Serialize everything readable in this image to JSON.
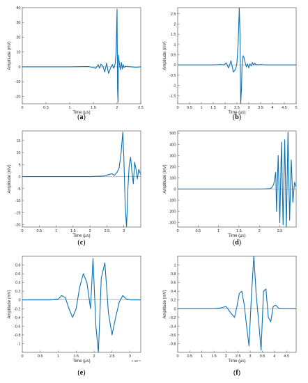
{
  "figure": {
    "line_color": "#0b6fb3",
    "axis_color": "#444444",
    "zero_line_color": "#9a9a9a"
  },
  "chart_data": [
    {
      "type": "line",
      "caption": "a",
      "xlabel": "Time (μs)",
      "ylabel": "Amplitude (mV)",
      "xlim": [
        0,
        2.5
      ],
      "ylim": [
        -25,
        40
      ],
      "xticks": [
        0,
        0.5,
        1,
        1.5,
        2,
        2.5
      ],
      "yticks": [
        -20,
        -10,
        0,
        10,
        20,
        30,
        40
      ],
      "x_exponent": "",
      "series": [
        {
          "x": [
            0,
            0.5,
            1.0,
            1.4,
            1.55,
            1.6,
            1.63,
            1.66,
            1.7,
            1.74,
            1.78,
            1.82,
            1.86,
            1.9,
            1.93,
            1.96,
            1.98,
            1.99,
            2.0,
            2.01,
            2.02,
            2.03,
            2.05,
            2.07,
            2.09,
            2.11,
            2.13,
            2.15,
            2.18,
            2.2,
            2.3,
            2.4,
            2.5
          ],
          "y": [
            0,
            0,
            0,
            0.2,
            -1,
            1.5,
            -1,
            1.8,
            0.5,
            -3.5,
            2.5,
            -4.5,
            -1,
            1.5,
            -1,
            2.0,
            10,
            25,
            39,
            -15,
            -24,
            8,
            2,
            -2,
            3,
            -1.5,
            1.5,
            -0.5,
            0.5,
            0.2,
            0,
            -0.3,
            0
          ]
        }
      ]
    },
    {
      "type": "line",
      "caption": "b",
      "xlabel": "Time (μs)",
      "ylabel": "Amplitude (mV)",
      "xlim": [
        0,
        5
      ],
      "ylim": [
        -1.9,
        2.8
      ],
      "xticks": [
        0,
        0.5,
        1,
        1.5,
        2,
        2.5,
        3,
        3.5,
        4,
        4.5,
        5
      ],
      "yticks": [
        -1.5,
        -1,
        -0.5,
        0,
        0.5,
        1,
        1.5,
        2,
        2.5
      ],
      "x_exponent": "",
      "series": [
        {
          "x": [
            0,
            1.0,
            1.5,
            1.8,
            1.95,
            2.05,
            2.15,
            2.25,
            2.35,
            2.45,
            2.5,
            2.55,
            2.6,
            2.63,
            2.66,
            2.69,
            2.72,
            2.76,
            2.8,
            2.85,
            2.9,
            2.95,
            3.0,
            3.05,
            3.1,
            3.15,
            3.2,
            3.25,
            3.3,
            3.35,
            3.4,
            3.5,
            3.7,
            4.0,
            5.0
          ],
          "y": [
            0,
            0,
            0,
            0.02,
            0.0,
            0.1,
            -0.15,
            0.2,
            -0.35,
            -0.2,
            0.1,
            1.0,
            2.8,
            1.5,
            -1.9,
            -1.2,
            0.1,
            0.45,
            0.35,
            0.1,
            -0.1,
            0.05,
            -0.15,
            0.05,
            -0.05,
            0.12,
            0.0,
            0.08,
            0.0,
            0.02,
            0,
            0.02,
            0,
            0,
            0
          ]
        }
      ]
    },
    {
      "type": "line",
      "caption": "c",
      "xlabel": "Time (μs)",
      "ylabel": "Amplitude (mV)",
      "xlim": [
        0,
        3.5
      ],
      "ylim": [
        -21,
        19
      ],
      "xticks": [
        0,
        0.5,
        1,
        1.5,
        2,
        2.5,
        3
      ],
      "yticks": [
        -20,
        -15,
        -10,
        -5,
        0,
        5,
        10,
        15
      ],
      "x_exponent": "",
      "series": [
        {
          "x": [
            0,
            1.0,
            2.0,
            2.4,
            2.55,
            2.65,
            2.72,
            2.8,
            2.86,
            2.92,
            2.97,
            3.0,
            3.04,
            3.08,
            3.12,
            3.16,
            3.2,
            3.24,
            3.28,
            3.32,
            3.36,
            3.4,
            3.44,
            3.48,
            3.5
          ],
          "y": [
            0,
            0,
            0,
            0.2,
            0.8,
            1.2,
            0.5,
            1.8,
            3.5,
            10,
            18.5,
            8,
            -12,
            -21,
            -5,
            5,
            8,
            2,
            -3,
            6,
            3,
            -1,
            3,
            1.5,
            1
          ]
        }
      ]
    },
    {
      "type": "line",
      "caption": "d",
      "xlabel": "Time (μs)",
      "ylabel": "Amplitude (mV)",
      "xlim": [
        0,
        2.9
      ],
      "ylim": [
        -340,
        520
      ],
      "xticks": [
        0,
        0.5,
        1,
        1.5,
        2,
        2.5
      ],
      "yticks": [
        -300,
        -200,
        -100,
        0,
        100,
        200,
        300,
        400,
        500
      ],
      "x_exponent": "",
      "series": [
        {
          "x": [
            0,
            1.0,
            2.0,
            2.25,
            2.3,
            2.35,
            2.4,
            2.42,
            2.46,
            2.5,
            2.54,
            2.58,
            2.62,
            2.66,
            2.7,
            2.74,
            2.78,
            2.82,
            2.86,
            2.9
          ],
          "y": [
            0,
            0,
            0,
            3,
            10,
            40,
            150,
            -200,
            300,
            -300,
            420,
            -320,
            440,
            -340,
            510,
            -280,
            260,
            -120,
            60,
            20
          ]
        }
      ]
    },
    {
      "type": "line",
      "caption": "e",
      "xlabel": "Time (μs)",
      "ylabel": "Amplitude (mV)",
      "xlim": [
        0,
        3.3
      ],
      "ylim": [
        -1.2,
        1.0
      ],
      "xticks": [
        0,
        0.5,
        1,
        1.5,
        2,
        2.5,
        3
      ],
      "yticks": [
        -1,
        -0.8,
        -0.6,
        -0.4,
        -0.2,
        0,
        0.2,
        0.4,
        0.6,
        0.8
      ],
      "x_exponent": "× 10⁻⁶",
      "series": [
        {
          "x": [
            0,
            0.5,
            0.8,
            1.0,
            1.1,
            1.2,
            1.3,
            1.4,
            1.5,
            1.6,
            1.7,
            1.8,
            1.9,
            1.97,
            2.05,
            2.12,
            2.2,
            2.3,
            2.4,
            2.5,
            2.6,
            2.7,
            2.8,
            2.9,
            3.0,
            3.3
          ],
          "y": [
            0,
            0,
            0,
            0.02,
            0.1,
            0.05,
            -0.2,
            -0.4,
            -0.2,
            0.3,
            0.6,
            0.4,
            -0.2,
            0.95,
            -0.6,
            -1.2,
            0.5,
            0.85,
            -0.3,
            -0.8,
            -0.4,
            -0.05,
            0.1,
            0.02,
            0,
            0
          ]
        }
      ]
    },
    {
      "type": "line",
      "caption": "f",
      "xlabel": "Time (μs)",
      "ylabel": "Amplitude (mV)",
      "xlim": [
        0,
        4.9
      ],
      "ylim": [
        -1.0,
        1.2
      ],
      "xticks": [
        0,
        0.5,
        1,
        1.5,
        2,
        2.5,
        3,
        3.5,
        4,
        4.5
      ],
      "yticks": [
        -0.8,
        -0.6,
        -0.4,
        -0.2,
        0,
        0.2,
        0.4,
        0.6,
        0.8,
        1
      ],
      "x_exponent": "",
      "series": [
        {
          "x": [
            0,
            1.0,
            1.5,
            1.8,
            2.0,
            2.2,
            2.35,
            2.45,
            2.55,
            2.65,
            2.75,
            2.85,
            2.95,
            3.05,
            3.15,
            3.25,
            3.35,
            3.45,
            3.55,
            3.65,
            3.75,
            3.85,
            3.95,
            4.05,
            4.2,
            4.4,
            4.9
          ],
          "y": [
            0,
            0,
            0,
            0.02,
            0.05,
            -0.1,
            -0.2,
            0.05,
            0.35,
            0.4,
            0.1,
            -0.4,
            -0.85,
            0.3,
            1.2,
            0.3,
            -0.3,
            -0.95,
            0.4,
            0.45,
            -0.2,
            -0.3,
            0.05,
            0.08,
            0,
            0,
            0
          ]
        }
      ]
    }
  ]
}
